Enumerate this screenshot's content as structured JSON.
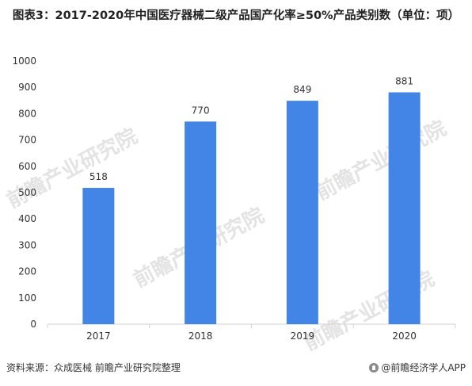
{
  "title": "图表3：2017-2020年中国医疗器械二级产品国产化率≥50%产品类别数（单位：项）",
  "source_label": "资料来源：众成医械 前瞻产业研究院整理",
  "brand_label": "@前瞻经济学人APP",
  "watermark_text": "前瞻产业研究院",
  "colors": {
    "bar": "#4285e6",
    "axis": "#d0d0d0",
    "text": "#333333",
    "watermark": "#e3e3e3"
  },
  "chart_data": {
    "type": "bar",
    "categories": [
      "2017",
      "2018",
      "2019",
      "2020"
    ],
    "values": [
      518,
      770,
      849,
      881
    ],
    "data_labels": [
      "518",
      "770",
      "849",
      "881"
    ],
    "ylim": [
      0,
      1000
    ],
    "yticks": [
      "0",
      "100",
      "200",
      "300",
      "400",
      "500",
      "600",
      "700",
      "800",
      "900",
      "1000"
    ],
    "grid": false,
    "xlabel": "",
    "ylabel": ""
  }
}
